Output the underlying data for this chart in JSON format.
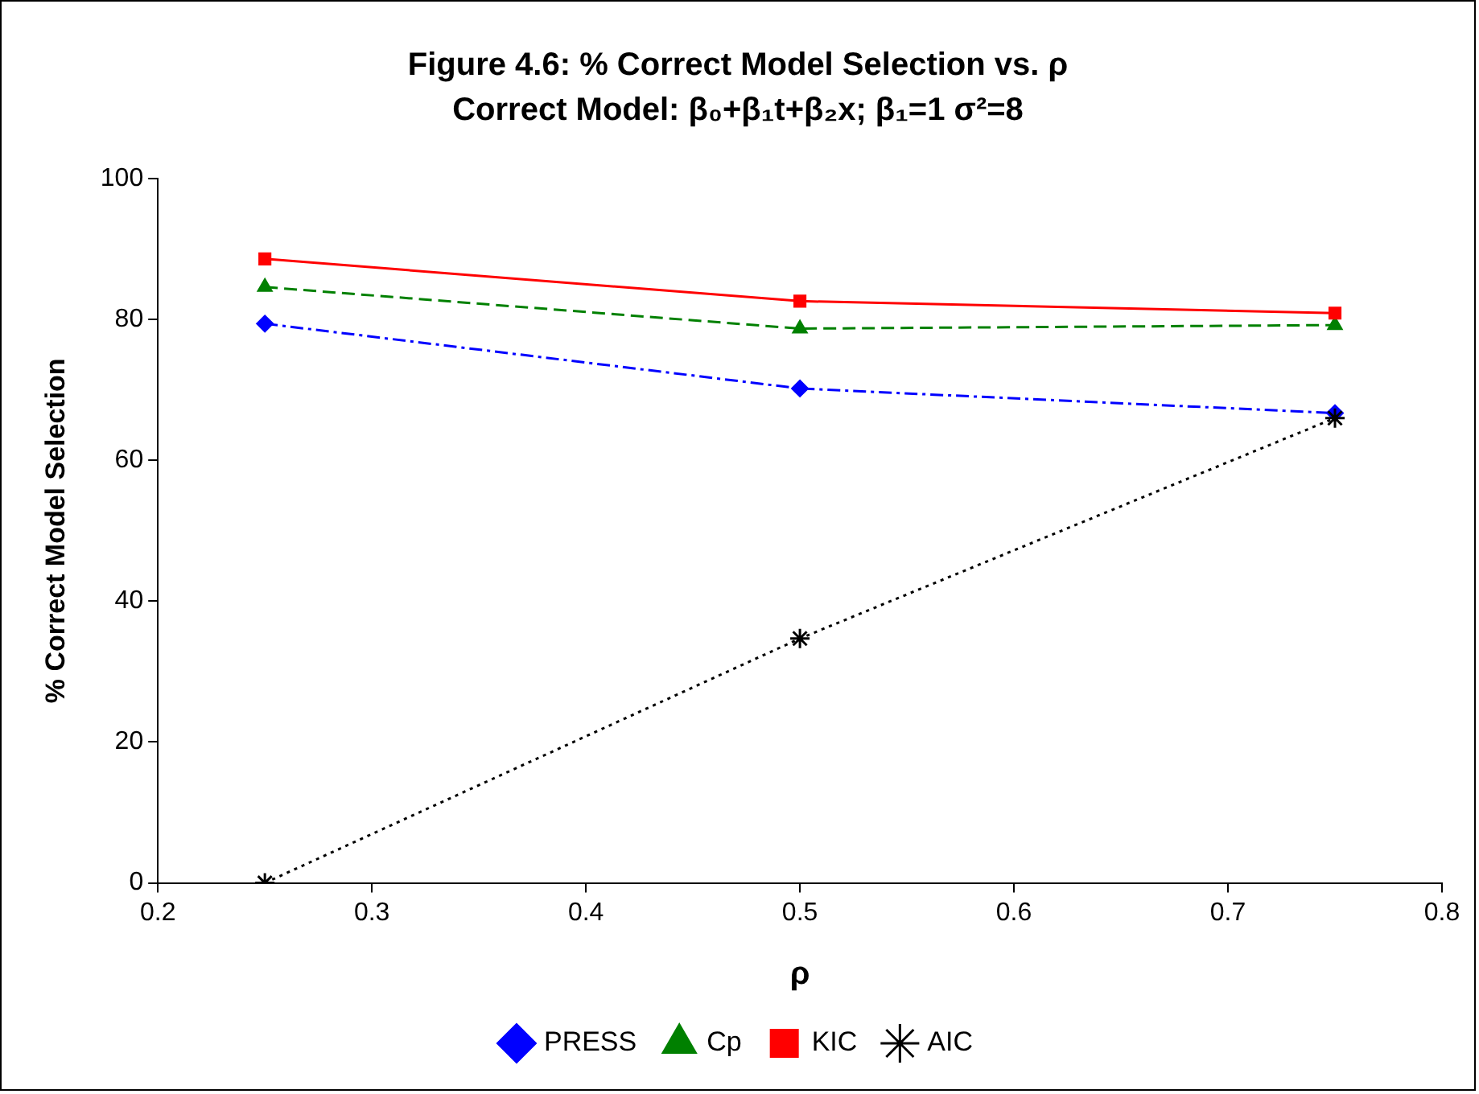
{
  "chart_data": {
    "type": "line",
    "title": "Figure 4.6: % Correct Model Selection vs. ρ",
    "subtitle": "Correct Model: β₀+β₁t+β₂x; β₁=1 σ²=8",
    "xlabel": "ρ",
    "ylabel": "% Correct Model Selection",
    "x": [
      0.25,
      0.5,
      0.75
    ],
    "xlim": [
      0.2,
      0.8
    ],
    "xticks": [
      0.2,
      0.3,
      0.4,
      0.5,
      0.6,
      0.7,
      0.8
    ],
    "ylim": [
      0,
      100
    ],
    "yticks": [
      0,
      20,
      40,
      60,
      80,
      100
    ],
    "grid": false,
    "legend": "bottom",
    "series": [
      {
        "name": "PRESS",
        "color": "#0000ff",
        "values": [
          79.4,
          70.2,
          66.7
        ],
        "marker": "diamond",
        "line_style": "dashdot"
      },
      {
        "name": "Cp",
        "color": "#008000",
        "values": [
          84.6,
          78.7,
          79.2
        ],
        "marker": "triangle",
        "line_style": "dashed"
      },
      {
        "name": "KIC",
        "color": "#ff0000",
        "values": [
          88.6,
          82.6,
          80.9
        ],
        "marker": "square",
        "line_style": "solid"
      },
      {
        "name": "AIC",
        "color": "#000000",
        "values": [
          0,
          34.7,
          66
        ],
        "marker": "cross",
        "line_style": "dotted"
      }
    ]
  }
}
